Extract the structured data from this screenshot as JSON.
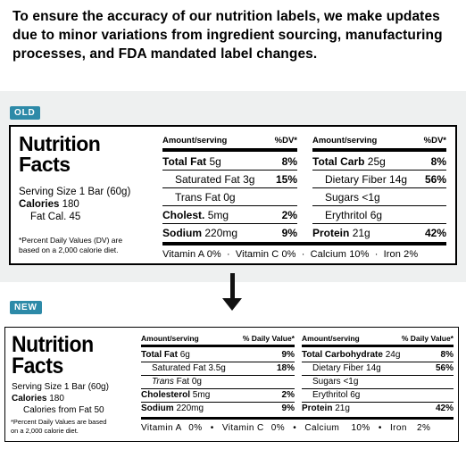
{
  "notice": "To ensure the accuracy of our nutrition labels, we make updates due to minor variations from ingredient sourcing, manufacturing processes, and FDA mandated label changes.",
  "old": {
    "tag": "OLD",
    "title_line1": "Nutrition",
    "title_line2": "Facts",
    "serving_size": "Serving Size 1 Bar (60g)",
    "calories_label": "Calories",
    "calories_value": "180",
    "fat_cal": "Fat Cal. 45",
    "footnote_line1": "*Percent Daily Values (DV) are",
    "footnote_line2": "based on a 2,000 calorie diet.",
    "left_header": {
      "amount": "Amount/serving",
      "dv": "%DV*"
    },
    "right_header": {
      "amount": "Amount/serving",
      "dv": "%DV*"
    },
    "left_rows": [
      {
        "label": "Total Fat",
        "amount": "5g",
        "dv": "8%"
      },
      {
        "label": "Saturated Fat",
        "amount": "3g",
        "dv": "15%"
      },
      {
        "label": "Trans Fat",
        "amount": "0g",
        "dv": ""
      },
      {
        "label": "Cholest.",
        "amount": "5mg",
        "dv": "2%"
      },
      {
        "label": "Sodium",
        "amount": "220mg",
        "dv": "9%"
      }
    ],
    "right_rows": [
      {
        "label": "Total Carb",
        "amount": "25g",
        "dv": "8%"
      },
      {
        "label": "Dietary Fiber",
        "amount": "14g",
        "dv": "56%"
      },
      {
        "label": "Sugars",
        "amount": "<1g",
        "dv": ""
      },
      {
        "label": "Erythritol",
        "amount": "6g",
        "dv": ""
      },
      {
        "label": "Protein",
        "amount": "21g",
        "dv": "42%"
      }
    ],
    "vitamins": [
      "Vitamin A 0%",
      "Vitamin C 0%",
      "Calcium 10%",
      "Iron 2%"
    ]
  },
  "new": {
    "tag": "NEW",
    "title_line1": "Nutrition",
    "title_line2": "Facts",
    "serving_size": "Serving Size 1 Bar (60g)",
    "calories_label": "Calories",
    "calories_value": "180",
    "fat_cal": "Calories from Fat 50",
    "footnote_line1": "*Percent Daily Values are based",
    "footnote_line2": "on a 2,000 calorie diet.",
    "left_header": {
      "amount": "Amount/serving",
      "dv": "% Daily Value*"
    },
    "right_header": {
      "amount": "Amount/serving",
      "dv": "% Daily Value*"
    },
    "left_rows": [
      {
        "label": "Total Fat",
        "amount": "6g",
        "dv": "9%"
      },
      {
        "label": "Saturated Fat",
        "amount": "3.5g",
        "dv": "18%"
      },
      {
        "label": "Trans",
        "amount": "Fat 0g",
        "dv": ""
      },
      {
        "label": "Cholesterol",
        "amount": "5mg",
        "dv": "2%"
      },
      {
        "label": "Sodium",
        "amount": "220mg",
        "dv": "9%"
      }
    ],
    "right_rows": [
      {
        "label": "Total Carbohydrate",
        "amount": "24g",
        "dv": "8%"
      },
      {
        "label": "Dietary Fiber",
        "amount": "14g",
        "dv": "56%"
      },
      {
        "label": "Sugars",
        "amount": "<1g",
        "dv": ""
      },
      {
        "label": "Erythritol",
        "amount": "6g",
        "dv": ""
      },
      {
        "label": "Protein",
        "amount": "21g",
        "dv": "42%"
      }
    ],
    "vitamins": [
      {
        "name": "Vitamin A",
        "dv": "0%"
      },
      {
        "name": "Vitamin C",
        "dv": "0%"
      },
      {
        "name": "Calcium",
        "dv": "10%"
      },
      {
        "name": "Iron",
        "dv": "2%"
      }
    ]
  }
}
